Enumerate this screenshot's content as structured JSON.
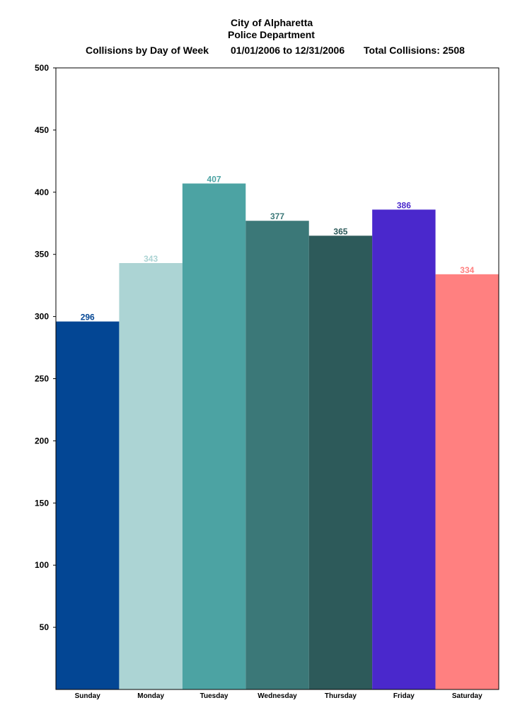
{
  "header": {
    "line1": "City of Alpharetta",
    "line2": "Police Department",
    "subtitle": "Collisions by Day of Week",
    "date_range": "01/01/2006 to 12/31/2006",
    "total": "Total Collisions: 2508"
  },
  "chart_data": {
    "type": "bar",
    "title": "City of Alpharetta Police Department",
    "subtitle": "Collisions by Day of Week",
    "xlabel": "",
    "ylabel": "",
    "ylim": [
      0,
      500
    ],
    "yticks": [
      50,
      100,
      150,
      200,
      250,
      300,
      350,
      400,
      450,
      500
    ],
    "grid": false,
    "legend": "none",
    "categories": [
      "Sunday",
      "Monday",
      "Tuesday",
      "Wednesday",
      "Thursday",
      "Friday",
      "Saturday"
    ],
    "values": [
      296,
      343,
      407,
      377,
      365,
      386,
      334
    ],
    "colors": [
      "#034694",
      "#acd4d4",
      "#4ca3a3",
      "#3b7878",
      "#2d5a5a",
      "#4a28cc",
      "#ff8080"
    ],
    "label_colors": [
      "#034694",
      "#acd4d4",
      "#4ca3a3",
      "#3b7878",
      "#2d5a5a",
      "#4a28cc",
      "#ff8080"
    ]
  }
}
